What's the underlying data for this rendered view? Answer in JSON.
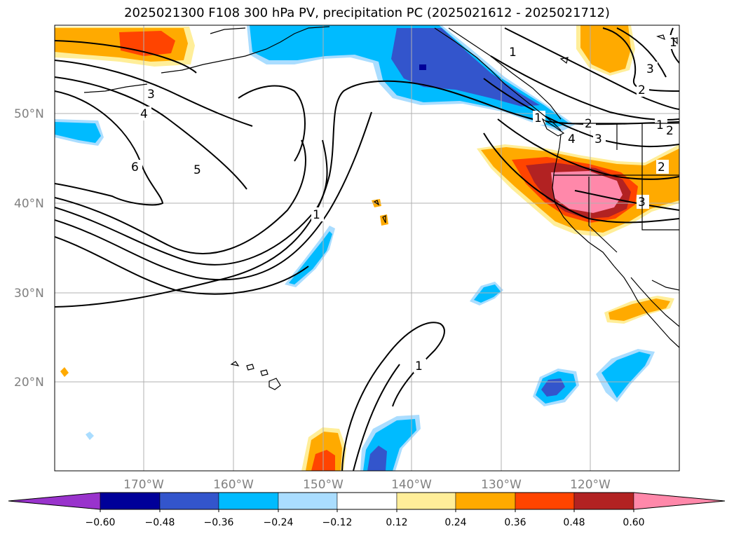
{
  "title": "2025021300 F108 300 hPa PV, precipitation PC (2025021612 - 2025021712)",
  "map": {
    "lat_labels": [
      "50°N",
      "40°N",
      "30°N",
      "20°N"
    ],
    "lon_labels": [
      "170°W",
      "160°W",
      "150°W",
      "140°W",
      "130°W",
      "120°W"
    ],
    "pv_contour_labels": [
      "3",
      "4",
      "6",
      "5",
      "1",
      "1",
      "1",
      "2",
      "3",
      "4",
      "3",
      "2",
      "1",
      "2",
      "1",
      "3",
      "2",
      "1"
    ]
  },
  "colorbar": {
    "colors": [
      "#9933cc",
      "#000099",
      "#3355cc",
      "#00bbff",
      "#aaddff",
      "#ffffff",
      "#ffee99",
      "#ffaa00",
      "#ff4400",
      "#b22222",
      "#ff88aa"
    ],
    "tick_labels": [
      "−0.60",
      "−0.48",
      "−0.36",
      "−0.24",
      "−0.12",
      "0.12",
      "0.24",
      "0.36",
      "0.48",
      "0.60"
    ]
  }
}
